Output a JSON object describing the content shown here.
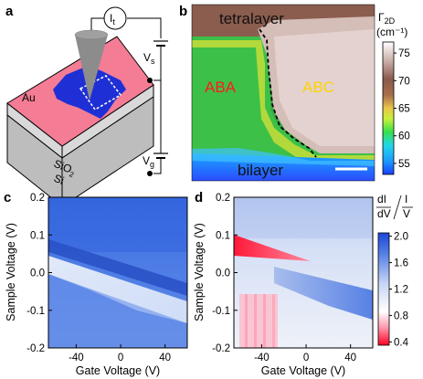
{
  "panels": {
    "a": {
      "label": "a",
      "current_label": "I",
      "current_sub": "t",
      "vs_label": "V",
      "vs_sub": "s",
      "vg_label": "V",
      "vg_sub": "g",
      "metal_label": "Au",
      "oxide_label": "SiO",
      "oxide_sub": "2",
      "substrate_label": "Si",
      "colors": {
        "gold_contact": "#f47c95",
        "graphene": "#1f2fd6",
        "tip": "#8c8c8c"
      }
    },
    "b": {
      "label": "b",
      "region_top": "tetralayer",
      "region_left": "ABA",
      "region_right": "ABC",
      "region_bottom": "bilayer",
      "colorbar_symbol": "Γ",
      "colorbar_sub": "2D",
      "colorbar_unit": "(cm⁻¹)",
      "colorbar_ticks": [
        "75",
        "70",
        "65",
        "60",
        "55"
      ],
      "colorbar_min": 53,
      "colorbar_max": 77,
      "colors": {
        "aba_label": "#ff1a1a",
        "abc_label": "#ffd400"
      }
    },
    "c": {
      "label": "c",
      "xlabel": "Gate Voltage (V)",
      "ylabel": "Sample Voltage (V)",
      "xticks": [
        "-40",
        "0",
        "40"
      ],
      "yticks": [
        "0.2",
        "0.1",
        "0.0",
        "-0.1",
        "-0.2"
      ]
    },
    "d": {
      "label": "d",
      "xlabel": "Gate Voltage (V)",
      "ylabel": "Sample Voltage (V)",
      "xticks": [
        "-40",
        "0",
        "40"
      ],
      "yticks": [
        "0.2",
        "0.1",
        "0.0",
        "-0.1",
        "-0.2"
      ],
      "colorbar_top_num": "dI",
      "colorbar_top_den": "dV",
      "colorbar_top_num2": "I",
      "colorbar_top_den2": "V",
      "colorbar_ticks": [
        "2.0",
        "1.6",
        "1.2",
        "0.8",
        "0.4"
      ],
      "colorbar_min": 0.35,
      "colorbar_max": 2.05
    }
  },
  "chart_data": [
    {
      "type": "heatmap",
      "panel": "c",
      "xlabel": "Gate Voltage (V)",
      "ylabel": "Sample Voltage (V)",
      "xlim": [
        -65,
        60
      ],
      "ylim": [
        -0.2,
        0.2
      ],
      "features": [
        {
          "kind": "dark band",
          "from": [
            -65,
            0.05
          ],
          "to": [
            60,
            -0.14
          ]
        },
        {
          "kind": "bright band",
          "from": [
            -65,
            0.02
          ],
          "to": [
            60,
            -0.16
          ]
        }
      ]
    },
    {
      "type": "heatmap",
      "panel": "d",
      "xlabel": "Gate Voltage (V)",
      "ylabel": "Sample Voltage (V)",
      "xlim": [
        -65,
        60
      ],
      "ylim": [
        -0.2,
        0.2
      ],
      "features": [
        {
          "kind": "red wedge",
          "apex": [
            -10,
            0.02
          ],
          "base_top": [
            -65,
            0.09
          ],
          "base_bottom": [
            -65,
            0.03
          ]
        },
        {
          "kind": "blue band",
          "from": [
            -20,
            -0.03
          ],
          "to": [
            60,
            -0.11
          ]
        },
        {
          "kind": "pink region",
          "x_range": [
            -65,
            -30
          ],
          "y_range": [
            -0.2,
            -0.1
          ]
        }
      ]
    }
  ]
}
